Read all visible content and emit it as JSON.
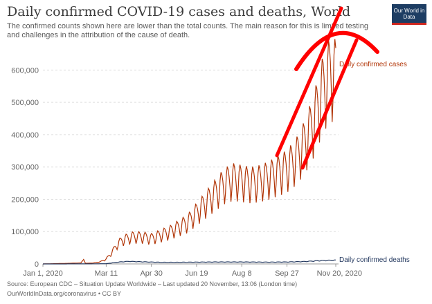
{
  "header": {
    "title": "Daily confirmed COVID-19 cases and deaths, World",
    "subtitle": "The confirmed counts shown here are lower than the total counts. The main reason for this is limited testing and challenges in the attribution of the cause of death.",
    "logo_text": "Our World in Data"
  },
  "footer": {
    "source": "Source: European CDC – Situation Update Worldwide – Last updated 20 November, 13:06 (London time)",
    "url": "OurWorldInData.org/coronavirus • CC BY"
  },
  "colors": {
    "cases": "#b13507",
    "deaths": "#22375e",
    "annotation": "#ff0000",
    "grid": "#dddddd"
  },
  "chart_data": {
    "type": "line",
    "title": "Daily confirmed COVID-19 cases and deaths, World",
    "x_ticks": [
      "Jan 1, 2020",
      "Mar 11",
      "Apr 30",
      "Jun 19",
      "Aug 8",
      "Sep 27",
      "Nov 20, 2020"
    ],
    "x_tick_days": [
      0,
      70,
      120,
      170,
      220,
      270,
      324
    ],
    "y_ticks": [
      "0",
      "100,000",
      "200,000",
      "300,000",
      "400,000",
      "500,000",
      "600,000"
    ],
    "y_tick_values": [
      0,
      100000,
      200000,
      300000,
      400000,
      500000,
      600000
    ],
    "ylim": [
      0,
      650000
    ],
    "grid": "horizontal",
    "series": [
      {
        "name": "Daily confirmed cases",
        "anchors": [
          [
            0,
            0
          ],
          [
            30,
            2000
          ],
          [
            42,
            3000
          ],
          [
            45,
            14000
          ],
          [
            47,
            2000
          ],
          [
            55,
            2500
          ],
          [
            63,
            6000
          ],
          [
            70,
            15000
          ],
          [
            76,
            35000
          ],
          [
            82,
            60000
          ],
          [
            88,
            75000
          ],
          [
            94,
            80000
          ],
          [
            100,
            85000
          ],
          [
            110,
            85000
          ],
          [
            120,
            80000
          ],
          [
            130,
            90000
          ],
          [
            140,
            100000
          ],
          [
            150,
            115000
          ],
          [
            160,
            130000
          ],
          [
            170,
            160000
          ],
          [
            180,
            190000
          ],
          [
            190,
            220000
          ],
          [
            200,
            250000
          ],
          [
            210,
            265000
          ],
          [
            220,
            260000
          ],
          [
            230,
            255000
          ],
          [
            240,
            260000
          ],
          [
            250,
            270000
          ],
          [
            260,
            285000
          ],
          [
            270,
            300000
          ],
          [
            280,
            330000
          ],
          [
            290,
            380000
          ],
          [
            300,
            450000
          ],
          [
            310,
            550000
          ],
          [
            318,
            600000
          ],
          [
            324,
            590000
          ]
        ]
      },
      {
        "name": "Daily confirmed deaths",
        "anchors": [
          [
            0,
            0
          ],
          [
            50,
            200
          ],
          [
            70,
            800
          ],
          [
            85,
            6000
          ],
          [
            95,
            8000
          ],
          [
            110,
            6500
          ],
          [
            130,
            5000
          ],
          [
            150,
            5000
          ],
          [
            170,
            5500
          ],
          [
            190,
            6000
          ],
          [
            220,
            6000
          ],
          [
            250,
            5500
          ],
          [
            270,
            6000
          ],
          [
            290,
            7500
          ],
          [
            310,
            10500
          ],
          [
            324,
            11500
          ]
        ]
      }
    ]
  }
}
